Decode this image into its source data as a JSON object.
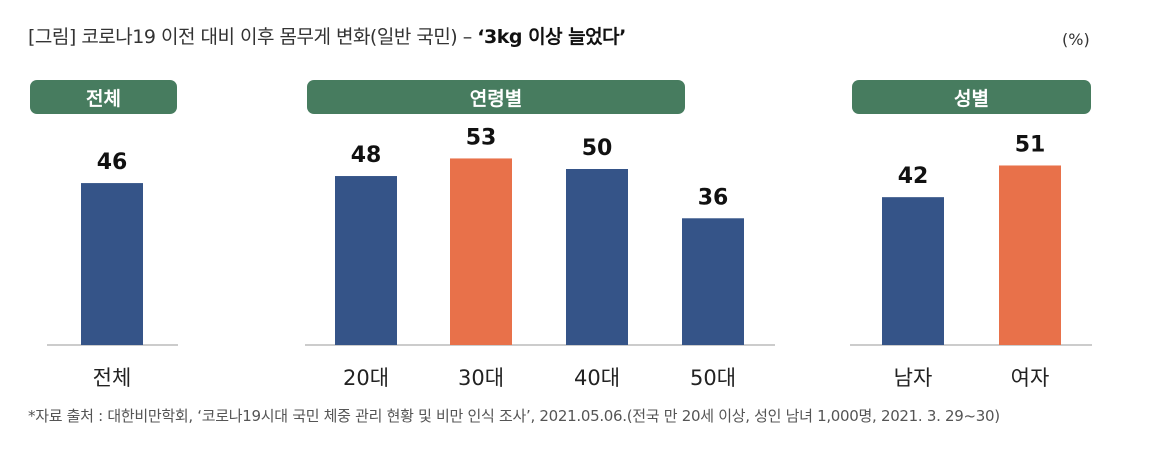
{
  "title": {
    "prefix": "[그림] 코로나19 이전 대비 이후 몸무게 변화(일반 국민) – ",
    "highlight": "‘3kg 이상 늘었다’"
  },
  "unit": "(%)",
  "group_headers": [
    "전체",
    "연령별",
    "성별"
  ],
  "footer": "*자료 출처 : 대한비만학회, ‘코로나19시대 국민 체중 관리 현황 및 비만 인식 조사’, 2021.05.06.(전국 만 20세 이상, 성인 남녀 1,000명, 2021. 3. 29~30)",
  "colors": {
    "header_green": "#477c5f",
    "bar_blue": "#355488",
    "bar_orange": "#e8714a",
    "baseline": "#bbbbbb"
  },
  "chart_data": {
    "type": "bar",
    "ylim": [
      0,
      60
    ],
    "ylabel": "",
    "groups": [
      {
        "name": "전체",
        "categories": [
          "전체"
        ],
        "values": [
          46
        ],
        "highlight": [
          false
        ]
      },
      {
        "name": "연령별",
        "categories": [
          "20대",
          "30대",
          "40대",
          "50대"
        ],
        "values": [
          48,
          53,
          50,
          36
        ],
        "highlight": [
          false,
          true,
          false,
          false
        ]
      },
      {
        "name": "성별",
        "categories": [
          "남자",
          "여자"
        ],
        "values": [
          42,
          51
        ],
        "highlight": [
          false,
          true
        ]
      }
    ]
  }
}
